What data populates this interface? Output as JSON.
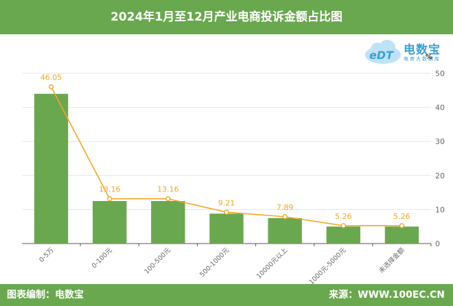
{
  "header": {
    "title": "2024年1月至12月产业电商投诉金额占比图"
  },
  "footer": {
    "left": "图表编制：电数宝",
    "right": "来源：WWW.100EC.CN"
  },
  "logo": {
    "main": "电数宝",
    "sub": "电商大数据库",
    "pct": "%"
  },
  "colors": {
    "bar": "#6aa84f",
    "line": "#f5a623",
    "label": "#f5a623",
    "axis": "#666666"
  },
  "chart_data": {
    "type": "bar",
    "categories": [
      "0-5万",
      "0-100元",
      "100-500元",
      "500-1000元",
      "10000元以上",
      "1000元-5000元",
      "未选择金额"
    ],
    "series": [
      {
        "type": "bar",
        "values": [
          44,
          12.5,
          12.5,
          8.8,
          7.5,
          5,
          5
        ]
      },
      {
        "type": "line",
        "values": [
          46.05,
          13.16,
          13.16,
          9.21,
          7.89,
          5.26,
          5.26
        ]
      }
    ],
    "data_labels": [
      "46.05",
      "13.16",
      "13.16",
      "9.21",
      "7.89",
      "5.26",
      "5.26"
    ],
    "yticks": [
      "0",
      "10",
      "20",
      "30",
      "40",
      "50"
    ],
    "ylim": [
      0,
      50
    ],
    "y_axis_side": "right",
    "grid": true,
    "legend": "none"
  }
}
